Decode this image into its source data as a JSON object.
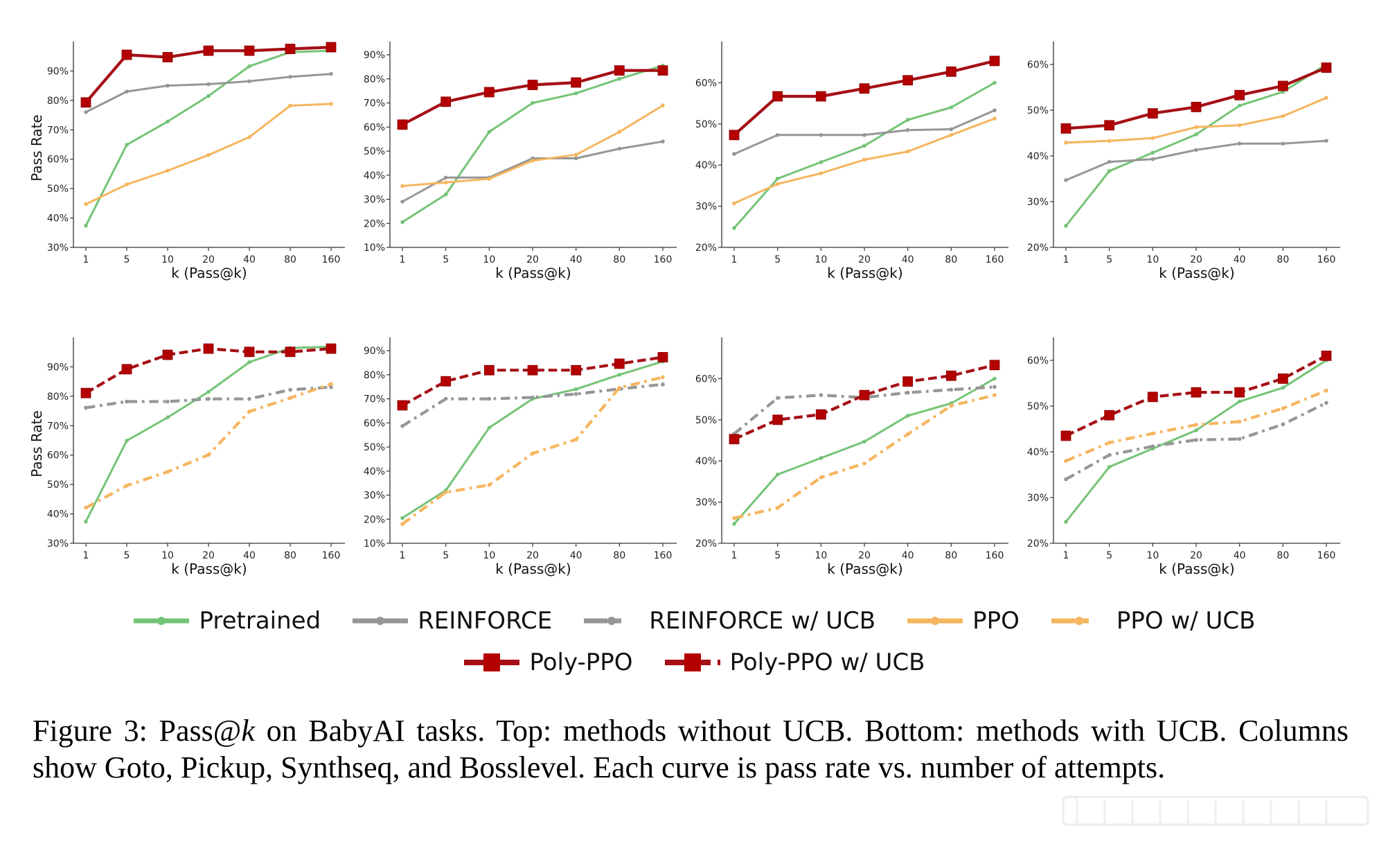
{
  "figure": {
    "caption": {
      "prefix": "Figure 3:  Pass@",
      "math": "k",
      "rest": " on BabyAI tasks.  Top:  methods without UCB. Bottom:  methods with UCB. Columns show Goto, Pickup, Synthseq, and Bosslevel.  Each curve is pass rate vs.  number of attempts."
    },
    "legend": {
      "row1": [
        {
          "key": "pretrained",
          "label": "Pretrained"
        },
        {
          "key": "reinforce",
          "label": "REINFORCE"
        },
        {
          "key": "reinforce_ucb",
          "label": "REINFORCE w/ UCB"
        },
        {
          "key": "ppo",
          "label": "PPO"
        },
        {
          "key": "ppo_ucb",
          "label": "PPO w/ UCB"
        }
      ],
      "row2": [
        {
          "key": "polyppo",
          "label": "Poly-PPO"
        },
        {
          "key": "polyppo_ucb",
          "label": "Poly-PPO w/ UCB"
        }
      ]
    },
    "styles": {
      "pretrained": {
        "color": "#74c476",
        "dash": "solid",
        "marker": "circle"
      },
      "reinforce": {
        "color": "#969696",
        "dash": "solid",
        "marker": "circle"
      },
      "reinforce_ucb": {
        "color": "#969696",
        "dash": "dashdot",
        "marker": "circle"
      },
      "ppo": {
        "color": "#f6b55e",
        "dash": "solid",
        "marker": "circle"
      },
      "ppo_ucb": {
        "color": "#f6b55e",
        "dash": "dashdot",
        "marker": "circle"
      },
      "polyppo": {
        "color": "#b30000",
        "line_color": "#a50f15",
        "dash": "solid",
        "marker": "square"
      },
      "polyppo_ucb": {
        "color": "#b30000",
        "line_color": "#a50f15",
        "dash": "dashed",
        "marker": "square"
      }
    }
  },
  "chart_data": [
    {
      "type": "line",
      "panel": "Goto",
      "row": "top",
      "title": "",
      "xlabel": "k (Pass@k)",
      "ylabel": "Pass Rate",
      "categories": [
        "1",
        "5",
        "10",
        "20",
        "40",
        "80",
        "160"
      ],
      "ylim": [
        30,
        100
      ],
      "yticks": [
        30,
        40,
        50,
        60,
        70,
        80,
        90
      ],
      "ytick_labels": [
        "30%",
        "40%",
        "50%",
        "60%",
        "70%",
        "80%",
        "90%"
      ],
      "grid": false,
      "series": [
        {
          "key": "pretrained",
          "name": "Pretrained",
          "values": [
            37.4,
            64.9,
            72.8,
            81.5,
            91.6,
            96.4,
            96.9
          ]
        },
        {
          "key": "reinforce",
          "name": "REINFORCE",
          "values": [
            76.0,
            83.0,
            85.0,
            85.5,
            86.5,
            88.0,
            89.0
          ]
        },
        {
          "key": "ppo",
          "name": "PPO",
          "values": [
            44.7,
            51.4,
            56.1,
            61.4,
            67.5,
            78.2,
            78.8
          ]
        },
        {
          "key": "polyppo",
          "name": "Poly-PPO",
          "values": [
            79.3,
            95.5,
            94.7,
            96.9,
            96.9,
            97.5,
            98.1
          ]
        }
      ]
    },
    {
      "type": "line",
      "panel": "Pickup",
      "row": "top",
      "title": "",
      "xlabel": "k (Pass@k)",
      "ylabel": "",
      "categories": [
        "1",
        "5",
        "10",
        "20",
        "40",
        "80",
        "160"
      ],
      "ylim": [
        10,
        95.5
      ],
      "yticks": [
        10,
        20,
        30,
        40,
        50,
        60,
        70,
        80,
        90
      ],
      "ytick_labels": [
        "10%",
        "20%",
        "30%",
        "40%",
        "50%",
        "60%",
        "70%",
        "80%",
        "90%"
      ],
      "grid": false,
      "series": [
        {
          "key": "pretrained",
          "name": "Pretrained",
          "values": [
            20.5,
            32.0,
            58.0,
            70.0,
            74.0,
            80.0,
            85.5
          ]
        },
        {
          "key": "reinforce",
          "name": "REINFORCE",
          "values": [
            29.0,
            39.0,
            39.0,
            47.0,
            47.0,
            51.0,
            54.0
          ]
        },
        {
          "key": "ppo",
          "name": "PPO",
          "values": [
            35.5,
            37.0,
            38.5,
            46.0,
            48.5,
            58.0,
            69.0
          ]
        },
        {
          "key": "polyppo",
          "name": "Poly-PPO",
          "values": [
            61.0,
            70.5,
            74.5,
            77.5,
            78.5,
            83.5,
            83.5
          ]
        }
      ]
    },
    {
      "type": "line",
      "panel": "Synthseq",
      "row": "top",
      "title": "",
      "xlabel": "k (Pass@k)",
      "ylabel": "",
      "categories": [
        "1",
        "5",
        "10",
        "20",
        "40",
        "80",
        "160"
      ],
      "ylim": [
        20,
        70
      ],
      "yticks": [
        20,
        30,
        40,
        50,
        60
      ],
      "ytick_labels": [
        "20%",
        "30%",
        "40%",
        "50%",
        "60%"
      ],
      "grid": false,
      "series": [
        {
          "key": "pretrained",
          "name": "Pretrained",
          "values": [
            24.7,
            36.7,
            40.7,
            44.7,
            51.0,
            54.0,
            60.0
          ]
        },
        {
          "key": "reinforce",
          "name": "REINFORCE",
          "values": [
            42.7,
            47.3,
            47.3,
            47.3,
            48.5,
            48.7,
            53.3
          ]
        },
        {
          "key": "ppo",
          "name": "PPO",
          "values": [
            30.7,
            35.4,
            38.0,
            41.3,
            43.3,
            47.3,
            51.3
          ]
        },
        {
          "key": "polyppo",
          "name": "Poly-PPO",
          "values": [
            47.3,
            56.7,
            56.7,
            58.6,
            60.6,
            62.7,
            65.3
          ]
        }
      ]
    },
    {
      "type": "line",
      "panel": "Bosslevel",
      "row": "top",
      "title": "",
      "xlabel": "k (Pass@k)",
      "ylabel": "",
      "categories": [
        "1",
        "5",
        "10",
        "20",
        "40",
        "80",
        "160"
      ],
      "ylim": [
        20,
        65
      ],
      "yticks": [
        20,
        30,
        40,
        50,
        60
      ],
      "ytick_labels": [
        "20%",
        "30%",
        "40%",
        "50%",
        "60%"
      ],
      "grid": false,
      "series": [
        {
          "key": "pretrained",
          "name": "Pretrained",
          "values": [
            24.7,
            36.7,
            40.7,
            44.7,
            51.0,
            54.0,
            60.0
          ]
        },
        {
          "key": "reinforce",
          "name": "REINFORCE",
          "values": [
            34.7,
            38.7,
            39.3,
            41.3,
            42.7,
            42.7,
            43.3
          ]
        },
        {
          "key": "ppo",
          "name": "PPO",
          "values": [
            42.9,
            43.3,
            43.9,
            46.3,
            46.7,
            48.7,
            52.7
          ]
        },
        {
          "key": "polyppo",
          "name": "Poly-PPO",
          "values": [
            46.0,
            46.7,
            49.3,
            50.7,
            53.3,
            55.3,
            59.3
          ]
        }
      ]
    },
    {
      "type": "line",
      "panel": "Goto",
      "row": "bottom",
      "title": "",
      "xlabel": "k (Pass@k)",
      "ylabel": "Pass Rate",
      "categories": [
        "1",
        "5",
        "10",
        "20",
        "40",
        "80",
        "160"
      ],
      "ylim": [
        30,
        100
      ],
      "yticks": [
        30,
        40,
        50,
        60,
        70,
        80,
        90
      ],
      "ytick_labels": [
        "30%",
        "40%",
        "50%",
        "60%",
        "70%",
        "80%",
        "90%"
      ],
      "grid": false,
      "series": [
        {
          "key": "pretrained",
          "name": "Pretrained",
          "values": [
            37.4,
            64.9,
            72.8,
            81.5,
            91.6,
            96.4,
            96.9
          ]
        },
        {
          "key": "reinforce_ucb",
          "name": "REINFORCE w/ UCB",
          "values": [
            76.1,
            78.2,
            78.2,
            79.1,
            79.1,
            82.2,
            83.1
          ]
        },
        {
          "key": "ppo_ucb",
          "name": "PPO w/ UCB",
          "values": [
            42.1,
            49.6,
            54.3,
            60.1,
            74.8,
            79.4,
            84.2
          ]
        },
        {
          "key": "polyppo_ucb",
          "name": "Poly-PPO w/ UCB",
          "values": [
            81.1,
            89.2,
            94.1,
            96.2,
            95.1,
            95.1,
            96.2
          ]
        }
      ]
    },
    {
      "type": "line",
      "panel": "Pickup",
      "row": "bottom",
      "title": "",
      "xlabel": "k (Pass@k)",
      "ylabel": "",
      "categories": [
        "1",
        "5",
        "10",
        "20",
        "40",
        "80",
        "160"
      ],
      "ylim": [
        10,
        95.5
      ],
      "yticks": [
        10,
        20,
        30,
        40,
        50,
        60,
        70,
        80,
        90
      ],
      "ytick_labels": [
        "10%",
        "20%",
        "30%",
        "40%",
        "50%",
        "60%",
        "70%",
        "80%",
        "90%"
      ],
      "grid": false,
      "series": [
        {
          "key": "pretrained",
          "name": "Pretrained",
          "values": [
            20.5,
            32.0,
            58.0,
            70.0,
            74.0,
            80.0,
            85.5
          ]
        },
        {
          "key": "reinforce_ucb",
          "name": "REINFORCE w/ UCB",
          "values": [
            58.7,
            70.0,
            70.0,
            70.6,
            72.0,
            74.1,
            76.0
          ]
        },
        {
          "key": "ppo_ucb",
          "name": "PPO w/ UCB",
          "values": [
            18.0,
            31.2,
            34.2,
            47.3,
            53.1,
            74.6,
            79.0
          ]
        },
        {
          "key": "polyppo_ucb",
          "name": "Poly-PPO w/ UCB",
          "values": [
            67.3,
            77.3,
            81.9,
            81.9,
            81.9,
            84.6,
            87.3
          ]
        }
      ]
    },
    {
      "type": "line",
      "panel": "Synthseq",
      "row": "bottom",
      "title": "",
      "xlabel": "k (Pass@k)",
      "ylabel": "",
      "categories": [
        "1",
        "5",
        "10",
        "20",
        "40",
        "80",
        "160"
      ],
      "ylim": [
        20,
        70
      ],
      "yticks": [
        20,
        30,
        40,
        50,
        60
      ],
      "ytick_labels": [
        "20%",
        "30%",
        "40%",
        "50%",
        "60%"
      ],
      "grid": false,
      "series": [
        {
          "key": "pretrained",
          "name": "Pretrained",
          "values": [
            24.7,
            36.7,
            40.7,
            44.7,
            51.0,
            54.0,
            60.0
          ]
        },
        {
          "key": "reinforce_ucb",
          "name": "REINFORCE w/ UCB",
          "values": [
            46.6,
            55.3,
            56.0,
            55.4,
            56.6,
            57.3,
            58.0
          ]
        },
        {
          "key": "ppo_ucb",
          "name": "PPO w/ UCB",
          "values": [
            26.1,
            28.6,
            36.0,
            39.4,
            46.5,
            53.4,
            56.0
          ]
        },
        {
          "key": "polyppo_ucb",
          "name": "Poly-PPO w/ UCB",
          "values": [
            45.3,
            50.0,
            51.3,
            56.0,
            59.3,
            60.7,
            63.3
          ]
        }
      ]
    },
    {
      "type": "line",
      "panel": "Bosslevel",
      "row": "bottom",
      "title": "",
      "xlabel": "k (Pass@k)",
      "ylabel": "",
      "categories": [
        "1",
        "5",
        "10",
        "20",
        "40",
        "80",
        "160"
      ],
      "ylim": [
        20,
        65
      ],
      "yticks": [
        20,
        30,
        40,
        50,
        60
      ],
      "ytick_labels": [
        "20%",
        "30%",
        "40%",
        "50%",
        "60%"
      ],
      "grid": false,
      "series": [
        {
          "key": "pretrained",
          "name": "Pretrained",
          "values": [
            24.7,
            36.7,
            40.7,
            44.7,
            51.0,
            54.0,
            60.0
          ]
        },
        {
          "key": "reinforce_ucb",
          "name": "REINFORCE w/ UCB",
          "values": [
            34.0,
            39.3,
            41.2,
            42.6,
            42.8,
            46.0,
            50.7
          ]
        },
        {
          "key": "ppo_ucb",
          "name": "PPO w/ UCB",
          "values": [
            38.0,
            42.0,
            44.0,
            45.9,
            46.6,
            49.5,
            53.4
          ]
        },
        {
          "key": "polyppo_ucb",
          "name": "Poly-PPO w/ UCB",
          "values": [
            43.5,
            48.0,
            52.0,
            53.0,
            53.0,
            56.0,
            61.0
          ]
        }
      ]
    }
  ]
}
